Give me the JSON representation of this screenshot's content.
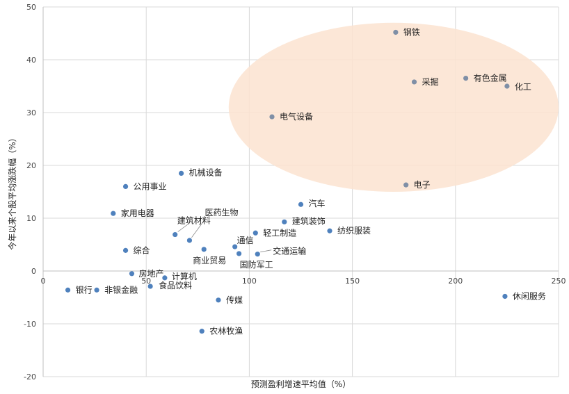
{
  "chart_data": {
    "type": "scatter",
    "xlabel": "预测盈利增速平均值（%）",
    "ylabel": "今年以来个股平均涨跌幅（%）",
    "xlim": [
      0,
      250
    ],
    "ylim": [
      -20,
      50
    ],
    "x_ticks": [
      0,
      50,
      100,
      150,
      200,
      250
    ],
    "y_ticks": [
      -20,
      -10,
      0,
      10,
      20,
      30,
      40,
      50
    ],
    "grid": true,
    "highlight_color": "#fbe3d0",
    "point_color": "#4f81bd",
    "highlighted_point_color": "#7f8fa6",
    "highlight_region": {
      "cx": 170,
      "cy": 31,
      "rx": 80,
      "ry": 16
    },
    "points": [
      {
        "name": "钢铁",
        "x": 171,
        "y": 45.2,
        "highlighted": true
      },
      {
        "name": "有色金属",
        "x": 205,
        "y": 36.5,
        "highlighted": true
      },
      {
        "name": "采掘",
        "x": 180,
        "y": 35.8,
        "highlighted": true
      },
      {
        "name": "化工",
        "x": 225,
        "y": 35.0,
        "highlighted": true
      },
      {
        "name": "电气设备",
        "x": 111,
        "y": 29.2,
        "highlighted": true
      },
      {
        "name": "电子",
        "x": 176,
        "y": 16.3,
        "highlighted": true
      },
      {
        "name": "机械设备",
        "x": 67,
        "y": 18.5
      },
      {
        "name": "公用事业",
        "x": 40,
        "y": 16.0
      },
      {
        "name": "家用电器",
        "x": 34,
        "y": 10.9
      },
      {
        "name": "汽车",
        "x": 125,
        "y": 12.6
      },
      {
        "name": "建筑装饰",
        "x": 117,
        "y": 9.3
      },
      {
        "name": "纺织服装",
        "x": 139,
        "y": 7.6
      },
      {
        "name": "轻工制造",
        "x": 103,
        "y": 7.2
      },
      {
        "name": "建筑材料",
        "x": 64,
        "y": 6.9
      },
      {
        "name": "医药生物",
        "x": 71,
        "y": 5.8
      },
      {
        "name": "通信",
        "x": 93,
        "y": 4.6
      },
      {
        "name": "综合",
        "x": 40,
        "y": 3.9
      },
      {
        "name": "商业贸易",
        "x": 78,
        "y": 4.1
      },
      {
        "name": "交通运输",
        "x": 104,
        "y": 3.2
      },
      {
        "name": "国防军工",
        "x": 95,
        "y": 3.3
      },
      {
        "name": "房地产",
        "x": 43,
        "y": -0.5
      },
      {
        "name": "计算机",
        "x": 59,
        "y": -1.3
      },
      {
        "name": "食品饮料",
        "x": 52,
        "y": -2.9
      },
      {
        "name": "银行",
        "x": 12,
        "y": -3.6
      },
      {
        "name": "非银金融",
        "x": 26,
        "y": -3.6
      },
      {
        "name": "传媒",
        "x": 85,
        "y": -5.5
      },
      {
        "name": "休闲服务",
        "x": 224,
        "y": -4.8
      },
      {
        "name": "农林牧渔",
        "x": 77,
        "y": -11.4
      }
    ]
  }
}
